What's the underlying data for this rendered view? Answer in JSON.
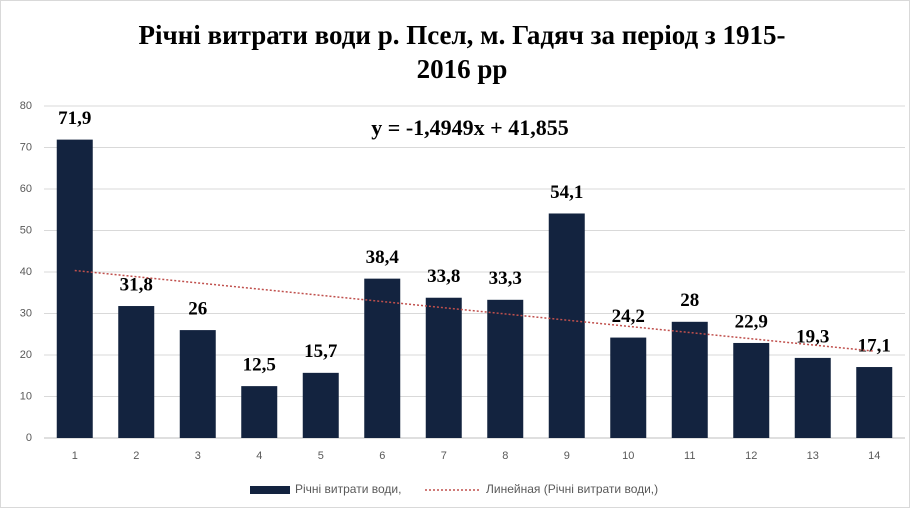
{
  "chart_data": {
    "type": "bar",
    "title": "Річні витрати  води р. Псел, м. Гадяч за період з 1915-",
    "subtitle": "2016 рр",
    "categories": [
      1,
      2,
      3,
      4,
      5,
      6,
      7,
      8,
      9,
      10,
      11,
      12,
      13,
      14
    ],
    "series": [
      {
        "name": "Річні витрати води,",
        "color": "#13233f",
        "values": [
          71.9,
          31.8,
          26,
          12.5,
          15.7,
          38.4,
          33.8,
          33.3,
          54.1,
          24.2,
          28,
          22.9,
          19.3,
          17.1
        ],
        "value_labels": [
          "71,9",
          "31,8",
          "26",
          "12,5",
          "15,7",
          "38,4",
          "33,8",
          "33,3",
          "54,1",
          "24,2",
          "28",
          "22,9",
          "19,3",
          "17,1"
        ]
      }
    ],
    "trendline": {
      "name": "Линейная (Річні витрати води,)",
      "color": "#c0504d",
      "slope": -1.4949,
      "intercept": 41.855,
      "equation": "y = -1,4949x + 41,855"
    },
    "ylim": [
      0,
      80
    ],
    "yticks": [
      0,
      10,
      20,
      30,
      40,
      50,
      60,
      70,
      80
    ],
    "grid": true,
    "legend": "bottom"
  }
}
